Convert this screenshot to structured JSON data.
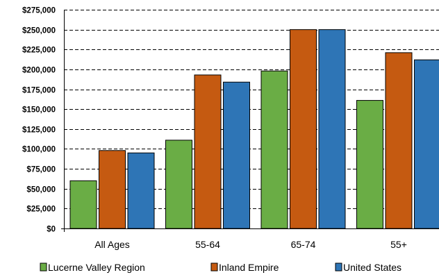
{
  "chart_data": {
    "type": "bar",
    "title": "",
    "xlabel": "",
    "ylabel": "",
    "categories": [
      "All Ages",
      "55-64",
      "65-74",
      "55+"
    ],
    "series": [
      {
        "name": "Lucerne Valley Region",
        "color": "#6aad45",
        "values": [
          60000,
          111000,
          198000,
          161000
        ]
      },
      {
        "name": "Inland Empire",
        "color": "#c55a11",
        "values": [
          98000,
          193000,
          250000,
          221000
        ]
      },
      {
        "name": "United States",
        "color": "#2e75b6",
        "values": [
          95000,
          184000,
          250000,
          212000
        ]
      }
    ],
    "ylim": [
      0,
      275000
    ],
    "y_ticks": [
      "$0",
      "$25,000",
      "$50,000",
      "$75,000",
      "$100,000",
      "$125,000",
      "$150,000",
      "$175,000",
      "$200,000",
      "$225,000",
      "$250,000",
      "$275,000"
    ],
    "grid": true,
    "legend_position": "bottom"
  }
}
